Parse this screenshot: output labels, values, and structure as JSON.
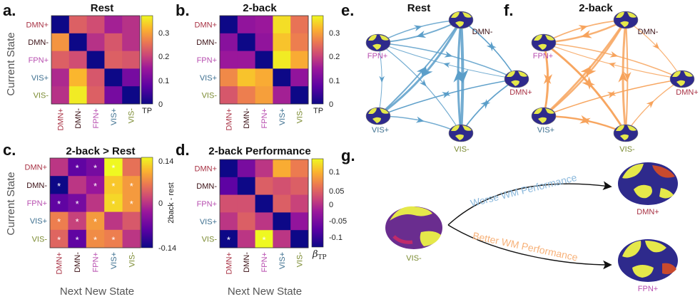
{
  "panels": {
    "a": {
      "letter": "a.",
      "title": "Rest"
    },
    "b": {
      "letter": "b.",
      "title": "2-back"
    },
    "c": {
      "letter": "c.",
      "title": "2-back > Rest"
    },
    "d": {
      "letter": "d.",
      "title": "2-back Performance"
    },
    "e": {
      "letter": "e.",
      "title": "Rest"
    },
    "f": {
      "letter": "f.",
      "title": "2-back"
    },
    "g": {
      "letter": "g."
    }
  },
  "axes": {
    "y_label": "Current State",
    "x_label": "Next New State",
    "states": [
      "DMN+",
      "DMN-",
      "FPN+",
      "VIS+",
      "VIS-"
    ]
  },
  "colorbars": {
    "a": {
      "ticks": [
        "0.3",
        "0.2",
        "0.1",
        "0"
      ],
      "label": "TP"
    },
    "b": {
      "ticks": [
        "0.3",
        "0.2",
        "0.1",
        "0"
      ],
      "label": "TP"
    },
    "c": {
      "ticks": [
        "0.14",
        "0",
        "-0.14"
      ],
      "label": "2back - rest"
    },
    "d": {
      "ticks": [
        "0.1",
        "0.05",
        "0",
        "-0.05",
        "-0.1"
      ],
      "label": "β",
      "label_sub": "TP"
    }
  },
  "colors": {
    "DMN+": "#a83244",
    "DMN-": "#3a0f14",
    "FPN+": "#b84fb0",
    "VIS+": "#3d6f8f",
    "VIS-": "#7a8a30",
    "rest_arrow": "#5b9ec9",
    "twoback_arrow": "#f7a35c",
    "worse": "#8ab8dc",
    "better": "#f7b27a"
  },
  "chart_data": [
    {
      "type": "heatmap",
      "title": "Rest",
      "xlabel": "Next New State",
      "ylabel": "Current State",
      "rows": [
        "DMN+",
        "DMN-",
        "FPN+",
        "VIS+",
        "VIS-"
      ],
      "cols": [
        "DMN+",
        "DMN-",
        "FPN+",
        "VIS+",
        "VIS-"
      ],
      "values": [
        [
          0,
          0.22,
          0.2,
          0.15,
          0.17
        ],
        [
          0.27,
          0,
          0.17,
          0.21,
          0.17
        ],
        [
          0.22,
          0.2,
          0,
          0.22,
          0.21
        ],
        [
          0.16,
          0.3,
          0.21,
          0,
          0.1
        ],
        [
          0.17,
          0.34,
          0.22,
          0.1,
          0
        ]
      ],
      "zlim": [
        0,
        0.35
      ],
      "colorbar_label": "TP"
    },
    {
      "type": "heatmap",
      "title": "2-back",
      "xlabel": "Next New State",
      "ylabel": "Current State",
      "rows": [
        "DMN+",
        "DMN-",
        "FPN+",
        "VIS+",
        "VIS-"
      ],
      "cols": [
        "DMN+",
        "DMN-",
        "FPN+",
        "VIS+",
        "VIS-"
      ],
      "values": [
        [
          0,
          0.13,
          0.14,
          0.33,
          0.24
        ],
        [
          0.12,
          0,
          0.13,
          0.31,
          0.25
        ],
        [
          0.14,
          0.14,
          0,
          0.34,
          0.29
        ],
        [
          0.26,
          0.31,
          0.29,
          0,
          0.13
        ],
        [
          0.21,
          0.25,
          0.28,
          0.15,
          0
        ]
      ],
      "zlim": [
        0,
        0.35
      ],
      "colorbar_label": "TP"
    },
    {
      "type": "heatmap",
      "title": "2-back > Rest",
      "xlabel": "Next New State",
      "ylabel": "Current State",
      "rows": [
        "DMN+",
        "DMN-",
        "FPN+",
        "VIS+",
        "VIS-"
      ],
      "cols": [
        "DMN+",
        "DMN-",
        "FPN+",
        "VIS+",
        "VIS-"
      ],
      "values": [
        [
          0,
          -0.08,
          -0.06,
          0.14,
          0.05
        ],
        [
          -0.14,
          0,
          -0.03,
          0.11,
          0.08
        ],
        [
          -0.08,
          -0.06,
          0,
          0.12,
          0.08
        ],
        [
          0.06,
          0.01,
          0.08,
          0,
          0.03
        ],
        [
          0.04,
          -0.08,
          0.07,
          0.06,
          0
        ]
      ],
      "significant": [
        [
          0,
          1
        ],
        [
          0,
          2
        ],
        [
          0,
          3
        ],
        [
          1,
          0
        ],
        [
          1,
          2
        ],
        [
          1,
          3
        ],
        [
          1,
          4
        ],
        [
          2,
          0
        ],
        [
          2,
          1
        ],
        [
          2,
          3
        ],
        [
          2,
          4
        ],
        [
          3,
          0
        ],
        [
          3,
          1
        ],
        [
          3,
          2
        ],
        [
          4,
          0
        ],
        [
          4,
          1
        ],
        [
          4,
          2
        ],
        [
          4,
          3
        ]
      ],
      "zlim": [
        -0.14,
        0.14
      ],
      "colorbar_label": "2back - rest"
    },
    {
      "type": "heatmap",
      "title": "2-back Performance",
      "xlabel": "Next New State",
      "ylabel": "Current State",
      "rows": [
        "DMN+",
        "DMN-",
        "FPN+",
        "VIS+",
        "VIS-"
      ],
      "cols": [
        "DMN+",
        "DMN-",
        "FPN+",
        "VIS+",
        "VIS-"
      ],
      "values": [
        [
          -0.12,
          -0.05,
          0,
          0.08,
          0.05
        ],
        [
          -0.07,
          -0.12,
          0.03,
          0.02,
          0.03
        ],
        [
          0.02,
          0.02,
          -0.12,
          0.03,
          0.01
        ],
        [
          0,
          0.03,
          0,
          -0.12,
          -0.03
        ],
        [
          -0.12,
          0,
          0.12,
          0,
          -0.12
        ]
      ],
      "significant": [
        [
          4,
          0
        ],
        [
          4,
          2
        ]
      ],
      "zlim": [
        -0.12,
        0.12
      ],
      "colorbar_label": "βTP"
    }
  ],
  "network_e": {
    "title": "Rest",
    "nodes": [
      "DMN-",
      "FPN+",
      "DMN+",
      "VIS+",
      "VIS-"
    ]
  },
  "network_f": {
    "title": "2-back",
    "nodes": [
      "DMN-",
      "FPN+",
      "DMN+",
      "VIS+",
      "VIS-"
    ]
  },
  "panel_g": {
    "source": "VIS-",
    "worse": "Worse WM Performance",
    "better": "Better WM Performance",
    "target_worse": "DMN+",
    "target_better": "FPN+"
  }
}
